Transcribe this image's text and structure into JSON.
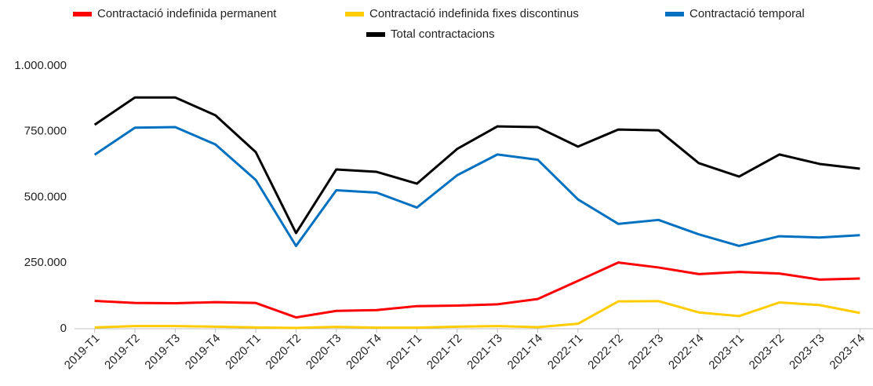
{
  "chart_data": {
    "type": "line",
    "categories": [
      "2019-T1",
      "2019-T2",
      "2019-T3",
      "2019-T4",
      "2020-T1",
      "2020-T2",
      "2020-T3",
      "2020-T4",
      "2021-T1",
      "2021-T2",
      "2021-T3",
      "2021-T4",
      "2022-T1",
      "2022-T2",
      "2022-T3",
      "2022-T4",
      "2023-T1",
      "2023-T2",
      "2023-T3",
      "2023-T4"
    ],
    "series": [
      {
        "name": "Contractació indefinida permanent",
        "color": "#ff0000",
        "values": [
          106000,
          98000,
          97000,
          101000,
          98000,
          43000,
          68000,
          71000,
          86000,
          88000,
          93000,
          113000,
          182000,
          252000,
          233000,
          208000,
          216000,
          210000,
          187000,
          191000
        ]
      },
      {
        "name": "Contractació indefinida fixes discontinus",
        "color": "#ffcc00",
        "values": [
          5000,
          10000,
          10000,
          8000,
          5000,
          3000,
          7000,
          4000,
          4000,
          8000,
          10000,
          6000,
          19000,
          104000,
          105000,
          62000,
          48000,
          100000,
          90000,
          60000
        ]
      },
      {
        "name": "Contractació temporal",
        "color": "#0070c0",
        "values": [
          662000,
          765000,
          767000,
          701000,
          566000,
          315000,
          527000,
          518000,
          461000,
          584000,
          663000,
          643000,
          492000,
          399000,
          414000,
          359000,
          315000,
          352000,
          347000,
          356000
        ]
      },
      {
        "name": "Total contractacions",
        "color": "#000000",
        "values": [
          776000,
          880000,
          880000,
          812000,
          672000,
          364000,
          606000,
          597000,
          552000,
          684000,
          770000,
          767000,
          693000,
          758000,
          755000,
          630000,
          579000,
          663000,
          627000,
          609000
        ]
      }
    ],
    "ylim": [
      0,
      1000000
    ],
    "yticks": [
      0,
      {
        "value": 250000,
        "label": "250.000"
      },
      {
        "value": 500000,
        "label": "500.000"
      },
      {
        "value": 750000,
        "label": "750.000"
      },
      {
        "value": 1000000,
        "label": "1.000.000"
      }
    ],
    "grid": false
  }
}
